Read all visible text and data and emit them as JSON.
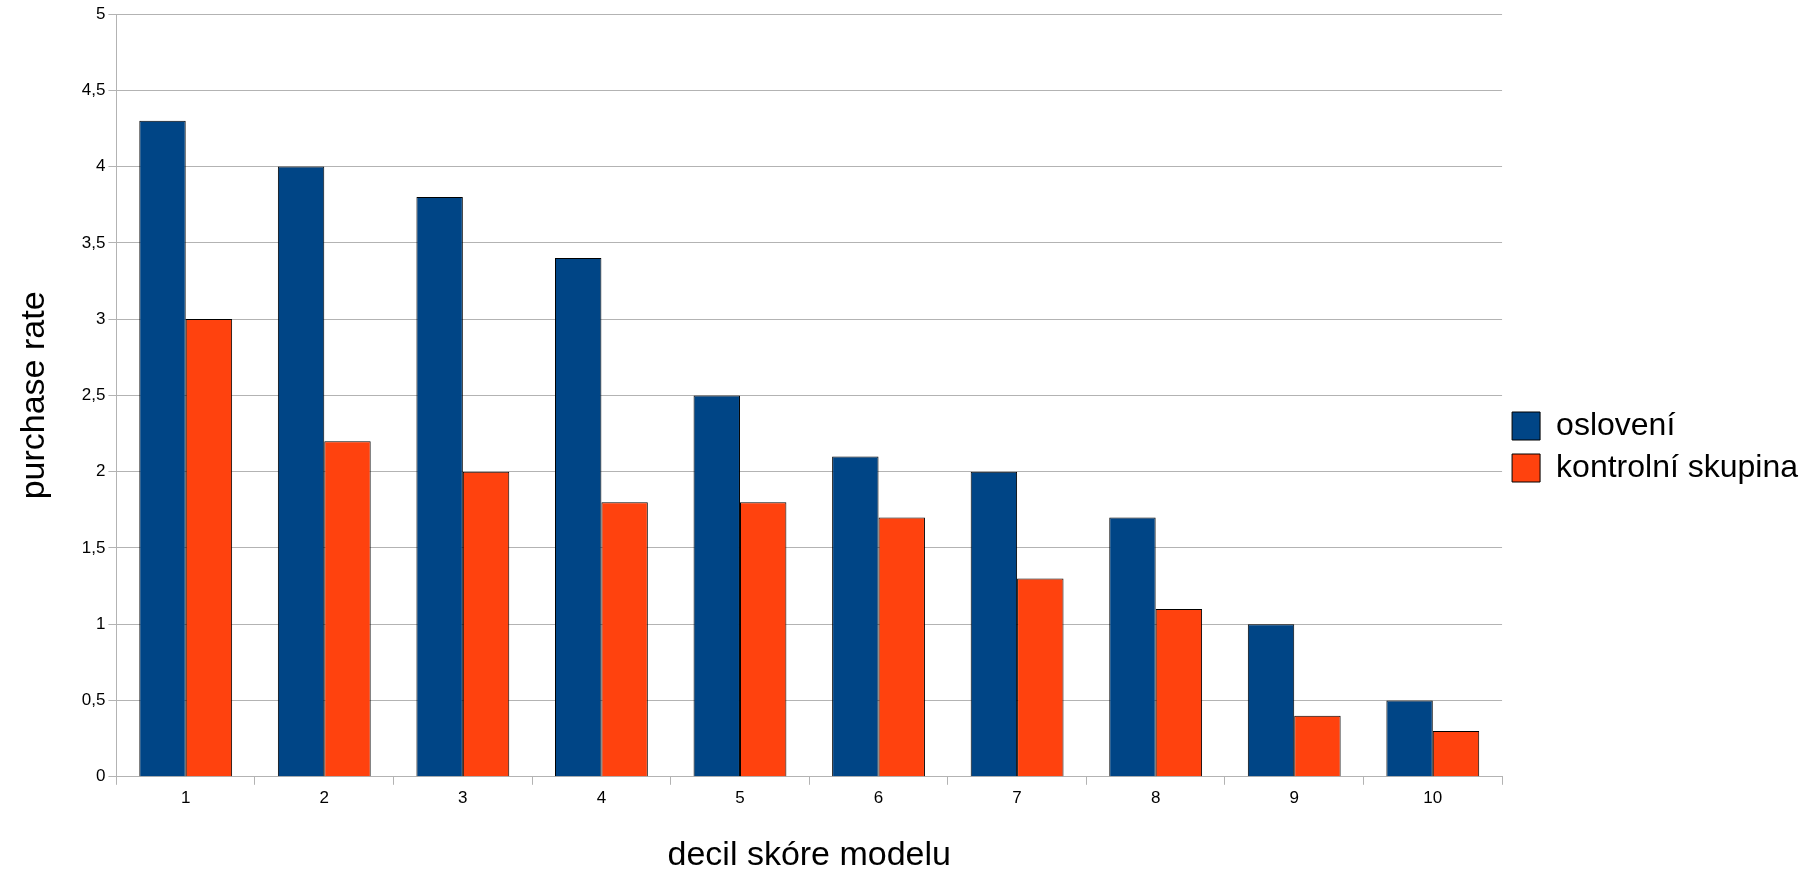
{
  "chart_data": {
    "type": "bar",
    "xlabel": "decil skóre modelu",
    "ylabel": "purchase rate",
    "categories": [
      "1",
      "2",
      "3",
      "4",
      "5",
      "6",
      "7",
      "8",
      "9",
      "10"
    ],
    "series": [
      {
        "name": "oslovení",
        "color": "#004586",
        "values": [
          4.3,
          4.0,
          3.8,
          3.4,
          2.5,
          2.1,
          2.0,
          1.7,
          1.0,
          0.5
        ]
      },
      {
        "name": "kontrolní skupina",
        "color": "#ff420e",
        "values": [
          3.0,
          2.2,
          2.0,
          1.8,
          1.8,
          1.7,
          1.3,
          1.1,
          0.4,
          0.3
        ]
      }
    ],
    "ylim": [
      0,
      5
    ],
    "yticks": [
      0,
      {
        "value": 0.5,
        "label": "0,5"
      },
      1,
      {
        "value": 1.5,
        "label": "1,5"
      },
      2,
      {
        "value": 2.5,
        "label": "2,5"
      },
      3,
      {
        "value": 3.5,
        "label": "3,5"
      },
      4,
      {
        "value": 4.5,
        "label": "4,5"
      },
      5
    ],
    "grid": "y",
    "legend": "right"
  }
}
